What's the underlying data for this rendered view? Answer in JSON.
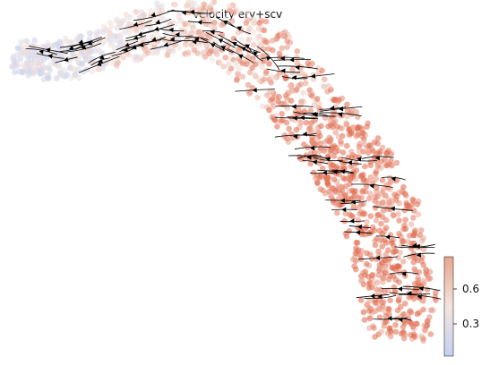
{
  "chart_data": {
    "type": "scatter",
    "title": "Velocity ery+scv",
    "xlabel": "",
    "ylabel": "",
    "grid": false,
    "colormap": {
      "low": "#c5cff2",
      "mid": "#f3e4dd",
      "high": "#e0694c"
    },
    "colorbar": {
      "ticks": [
        "0.3",
        "0.6"
      ],
      "range": [
        0.15,
        0.78
      ],
      "placement": "bottom-right"
    },
    "streamline_color": "#000000",
    "arrow_color": "#000000"
  }
}
